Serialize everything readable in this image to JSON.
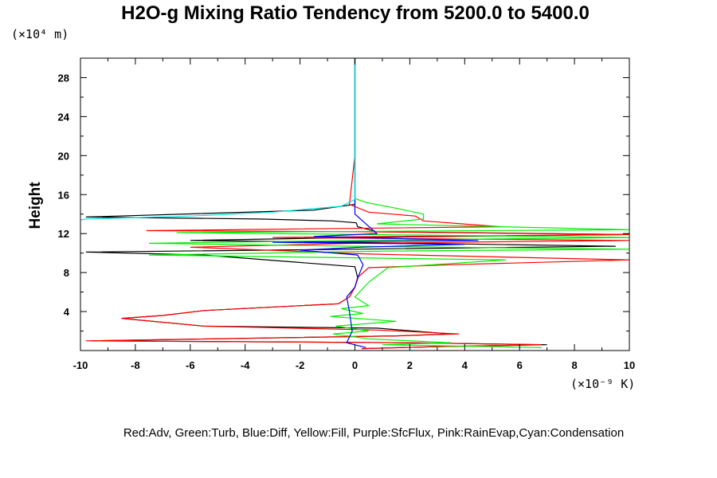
{
  "chart_data": {
    "type": "line",
    "title": "H2O-g Mixing Ratio Tendency from 5200.0 to 5400.0",
    "ylabel": "Height",
    "xunit_label": "(×10⁻⁹ K)",
    "yunit_label": "(×10⁴ m)",
    "xlim": [
      -10,
      10
    ],
    "ylim": [
      0,
      30
    ],
    "xticks": [
      -10,
      -8,
      -6,
      -4,
      -2,
      0,
      2,
      4,
      6,
      8,
      10
    ],
    "yticks": [
      4,
      8,
      12,
      16,
      20,
      24,
      28
    ],
    "grid": false,
    "legend_text": "Red:Adv, Green:Turb, Blue:Diff, Yellow:Fill, Purple:SfcFlux, Pink:RainEvap,Cyan:Condensation",
    "series": [
      {
        "color": "#000000",
        "x": [
          0.25,
          3.0,
          7.0,
          2.0,
          -9.5,
          1.5,
          3.5,
          0.8,
          -5.5,
          -8.5,
          -7.0,
          -5.5,
          -0.6,
          -0.2,
          0,
          0.1,
          0,
          -5.5,
          -9.8,
          0,
          9.5,
          0,
          -6.0,
          0,
          10.0,
          0.8,
          0.1,
          0.05,
          -0.8,
          -3.5,
          -9.8,
          -1.5,
          0,
          0,
          0
        ],
        "y": [
          0.2,
          0.4,
          0.6,
          0.8,
          1.0,
          1.5,
          1.7,
          2.3,
          2.5,
          3.3,
          3.6,
          4.1,
          4.8,
          5.5,
          6.5,
          7.5,
          8.6,
          9.8,
          10.1,
          10.4,
          10.7,
          11.1,
          11.3,
          11.6,
          11.9,
          12.2,
          12.7,
          13.1,
          13.3,
          13.5,
          13.7,
          14.4,
          15.0,
          20.0,
          30.0
        ]
      },
      {
        "color": "#ff0000",
        "x": [
          0.25,
          3.0,
          6.8,
          2.0,
          -9.8,
          1.5,
          3.8,
          0.8,
          -5.5,
          -8.5,
          -7.0,
          -5.5,
          -0.6,
          -0.2,
          0,
          0.1,
          0.5,
          3.5,
          10.0,
          0.5,
          -6.0,
          0,
          10.0,
          -3.0,
          10.0,
          0,
          -7.6,
          5.3,
          2.5,
          2.2,
          0.5,
          -0.2,
          0,
          0
        ],
        "y": [
          0.2,
          0.4,
          0.6,
          0.8,
          1.0,
          1.5,
          1.7,
          2.1,
          2.5,
          3.3,
          3.6,
          4.1,
          4.8,
          5.5,
          6.5,
          7.5,
          8.5,
          8.8,
          9.3,
          9.9,
          10.6,
          11.0,
          11.3,
          11.6,
          11.9,
          12.2,
          12.3,
          12.7,
          13.3,
          13.8,
          14.2,
          15.0,
          20.0,
          30.0
        ]
      },
      {
        "color": "#00ee00",
        "x": [
          6.8,
          1.0,
          3.5,
          0.5,
          -0.8,
          0.5,
          -0.7,
          1.5,
          -0.9,
          0.3,
          -0.5,
          0.5,
          0,
          0.5,
          1.2,
          5.5,
          -7.5,
          1.0,
          10.0,
          0,
          -7.5,
          0,
          10.0,
          0.5,
          -6.5,
          10.0,
          0.8,
          2.5,
          2.5,
          1.5,
          0.4,
          0,
          0,
          0
        ],
        "y": [
          0.3,
          0.6,
          0.8,
          1.2,
          1.7,
          2.0,
          2.5,
          3.0,
          3.5,
          3.8,
          4.3,
          4.6,
          5.5,
          7.0,
          8.5,
          9.3,
          9.8,
          10.2,
          10.4,
          10.7,
          11.0,
          11.3,
          11.6,
          11.9,
          12.1,
          12.4,
          13.0,
          13.5,
          14.0,
          14.6,
          15.2,
          15.6,
          20.0,
          30.0
        ]
      },
      {
        "color": "#0000ff",
        "x": [
          0.4,
          -0.3,
          -0.1,
          -0.2,
          -0.3,
          0,
          0.15,
          0.3,
          0.1,
          -2.0,
          0.2,
          4.0,
          -3.0,
          4.5,
          -1.5,
          0.8,
          0,
          0,
          0
        ],
        "y": [
          0.3,
          0.8,
          2.0,
          4.0,
          5.5,
          6.5,
          7.8,
          8.8,
          9.8,
          10.3,
          10.6,
          10.9,
          11.1,
          11.3,
          11.7,
          12.0,
          14.0,
          20.0,
          30.0
        ]
      },
      {
        "color": "#00e5e5",
        "x": [
          0,
          0,
          0,
          0,
          -0.5,
          -3.0,
          -6.0,
          -9.8,
          -10.0
        ],
        "y": [
          30.0,
          20.0,
          17.0,
          15.5,
          14.8,
          14.2,
          13.8,
          13.5,
          13.4
        ]
      }
    ]
  }
}
